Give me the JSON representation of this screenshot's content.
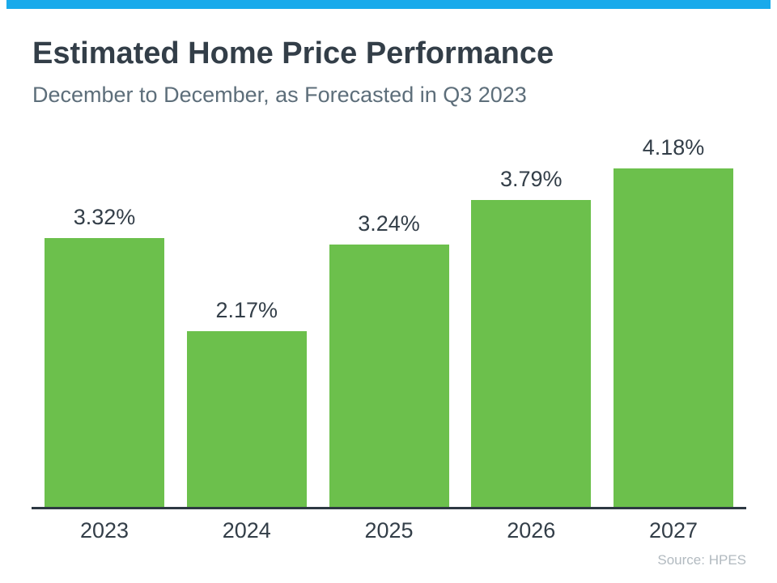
{
  "header": {
    "title": "Estimated Home Price Performance",
    "subtitle": "December to December, as Forecasted in Q3 2023"
  },
  "footer": {
    "source": "Source: HPES"
  },
  "colors": {
    "accent_bar": "#19aaeb",
    "bar_fill": "#6cc04c",
    "text_dark": "#333e48",
    "text_subtitle": "#5d6e7a",
    "text_source": "#b2bac0",
    "axis_line": "#2d3842"
  },
  "chart_data": {
    "type": "bar",
    "title": "Estimated Home Price Performance",
    "subtitle": "December to December, as Forecasted in Q3 2023",
    "categories": [
      "2023",
      "2024",
      "2025",
      "2026",
      "2027"
    ],
    "values": [
      3.32,
      2.17,
      3.24,
      3.79,
      4.18
    ],
    "value_labels": [
      "3.32%",
      "2.17%",
      "3.24%",
      "3.79%",
      "4.18%"
    ],
    "xlabel": "",
    "ylabel": "",
    "ylim": [
      0,
      4.5
    ],
    "grid": false,
    "legend": false,
    "data_labels_position": "above-bars",
    "source": "Source: HPES",
    "bar_color": "#6cc04c"
  }
}
